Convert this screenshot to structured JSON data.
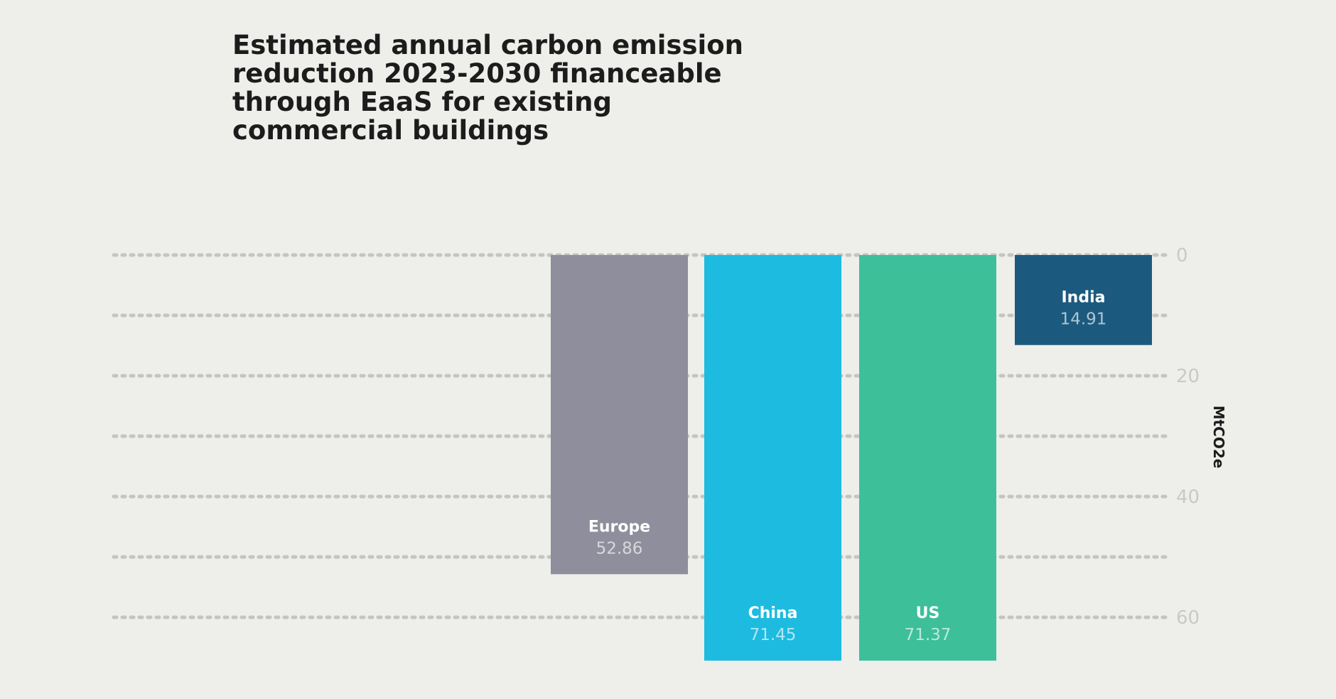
{
  "chart_data": {
    "type": "bar",
    "orientation": "vertical-inverted",
    "title": "Estimated annual carbon emission reduction 2023-2030 financeable through EaaS for existing commercial buildings",
    "ylabel": "MtCO2e",
    "xlabel": "",
    "ylim": [
      0,
      67
    ],
    "yticks": [
      0,
      10,
      20,
      30,
      40,
      50,
      60
    ],
    "ytick_labels": [
      "0",
      "",
      "20",
      "",
      "40",
      "",
      "60"
    ],
    "grid": true,
    "categories": [
      "Europe",
      "China",
      "US",
      "India"
    ],
    "values": [
      52.86,
      71.45,
      71.37,
      14.91
    ],
    "value_labels": [
      "52.86",
      "71.45",
      "71.37",
      "14.91"
    ],
    "colors": [
      "#8e8e9c",
      "#1dbbe0",
      "#3dbf9a",
      "#1b5a7e"
    ],
    "label_colors": [
      "#ffffff",
      "#ffffff",
      "#ffffff",
      "#ffffff"
    ]
  }
}
